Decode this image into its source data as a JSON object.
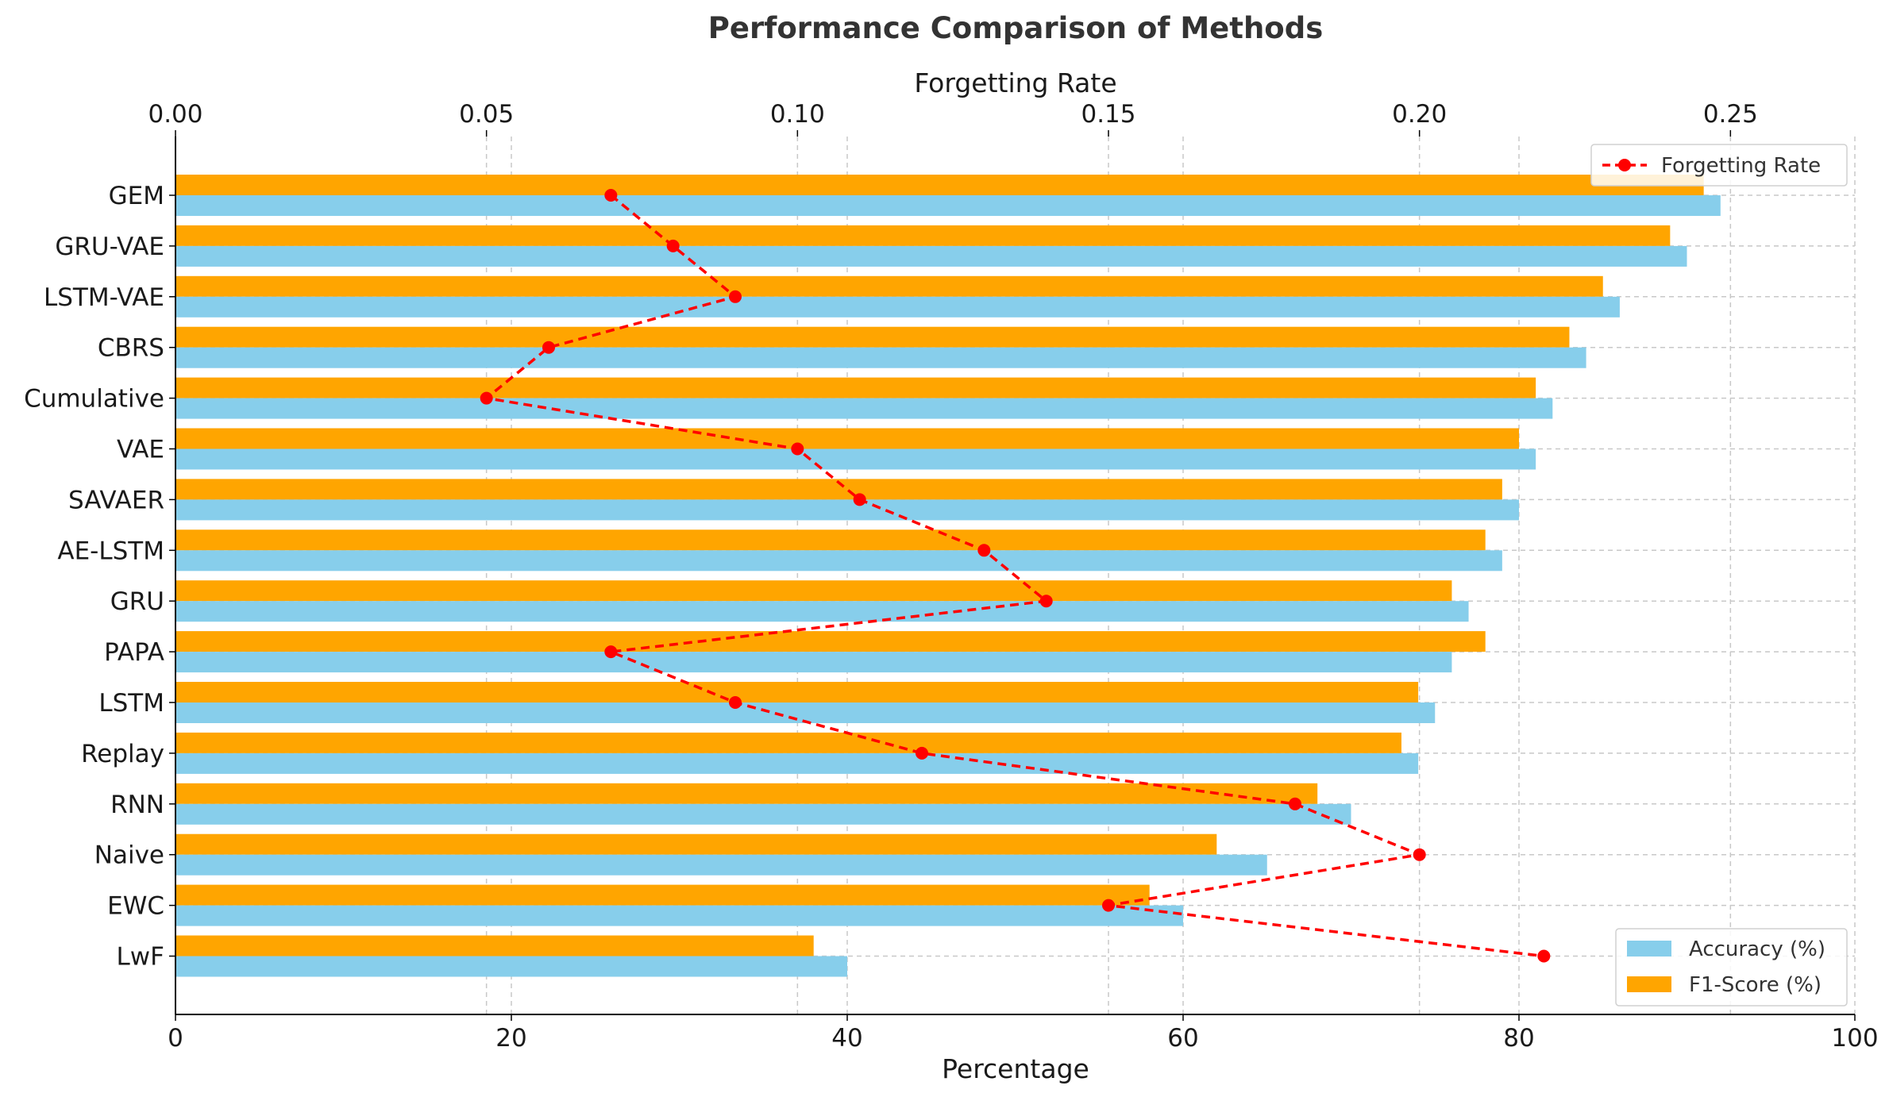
{
  "chart_data": {
    "type": "bar",
    "orientation": "horizontal",
    "title": "Performance Comparison of Methods",
    "xlabel": "Percentage",
    "x2label": "Forgetting Rate",
    "xlim": [
      0,
      100
    ],
    "x2lim": [
      0,
      0.27
    ],
    "x_ticks": [
      0,
      20,
      40,
      60,
      80,
      100
    ],
    "x2_ticks": [
      "0.00",
      "0.05",
      "0.10",
      "0.15",
      "0.20",
      "0.25"
    ],
    "grid": true,
    "categories": [
      "GEM",
      "GRU-VAE",
      "LSTM-VAE",
      "CBRS",
      "Cumulative",
      "VAE",
      "SAVAER",
      "AE-LSTM",
      "GRU",
      "PAPA",
      "LSTM",
      "Replay",
      "RNN",
      "Naive",
      "EWC",
      "LwF"
    ],
    "series": [
      {
        "name": "Accuracy (%)",
        "kind": "bar",
        "color": "#87ceeb",
        "values": [
          92,
          90,
          86,
          84,
          82,
          81,
          80,
          79,
          77,
          76,
          75,
          74,
          70,
          65,
          60,
          40
        ]
      },
      {
        "name": "F1-Score (%)",
        "kind": "bar",
        "color": "#ffa500",
        "values": [
          91,
          89,
          85,
          83,
          81,
          80,
          79,
          78,
          76,
          78,
          74,
          73,
          68,
          62,
          58,
          38
        ]
      },
      {
        "name": "Forgetting Rate",
        "kind": "line",
        "axis": "top",
        "color": "#ff0000",
        "values": [
          0.07,
          0.08,
          0.09,
          0.06,
          0.05,
          0.1,
          0.11,
          0.13,
          0.14,
          0.07,
          0.09,
          0.12,
          0.18,
          0.2,
          0.15,
          0.22
        ]
      }
    ],
    "legends": {
      "line_legend_position": "upper right",
      "bar_legend_position": "lower right"
    }
  }
}
